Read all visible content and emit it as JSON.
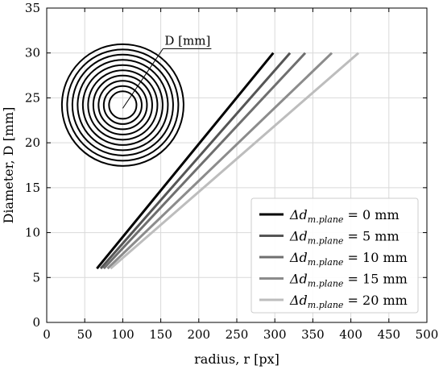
{
  "chart_data": {
    "type": "line",
    "xlabel": "radius, r [px]",
    "ylabel": "Diameter, D [mm]",
    "xlim": [
      0,
      500
    ],
    "ylim": [
      0,
      35
    ],
    "xticks": [
      0,
      50,
      100,
      150,
      200,
      250,
      300,
      350,
      400,
      450,
      500
    ],
    "yticks": [
      0,
      5,
      10,
      15,
      20,
      25,
      30,
      35
    ],
    "grid": true,
    "legend_position": "bottom-right",
    "series": [
      {
        "delta": "0",
        "unit": "mm",
        "color": "#000000",
        "x": [
          66,
          298
        ],
        "y": [
          6,
          30
        ]
      },
      {
        "delta": "5",
        "unit": "mm",
        "color": "#555555",
        "x": [
          71,
          320
        ],
        "y": [
          6,
          30
        ]
      },
      {
        "delta": "10",
        "unit": "mm",
        "color": "#6f6f6f",
        "x": [
          75,
          340
        ],
        "y": [
          6,
          30
        ]
      },
      {
        "delta": "15",
        "unit": "mm",
        "color": "#8c8c8c",
        "x": [
          80,
          375
        ],
        "y": [
          6,
          30
        ]
      },
      {
        "delta": "20",
        "unit": "mm",
        "color": "#bdbdbd",
        "x": [
          84,
          410
        ],
        "y": [
          6,
          30
        ]
      }
    ],
    "legend_symbol": "Δd",
    "legend_subscript": "m.plane",
    "inset": {
      "annotation": "D [mm]",
      "rings": 10,
      "center_x": 100,
      "center_y": 24.2,
      "outer_radius_x": 80
    }
  }
}
